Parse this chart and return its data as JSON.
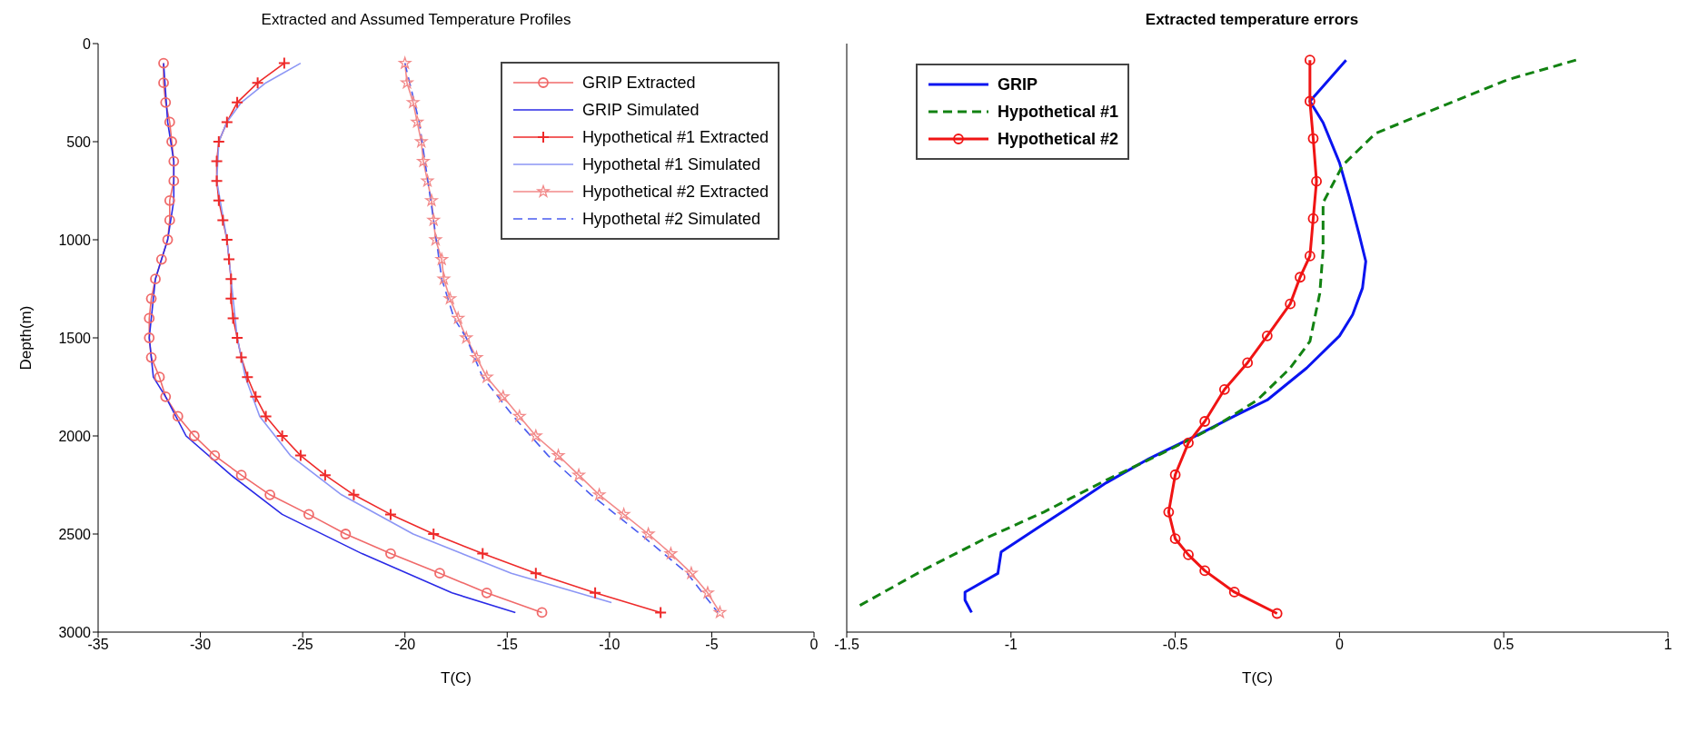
{
  "chart_data": [
    {
      "type": "line",
      "title": "Extracted and Assumed Temperature Profiles",
      "xlabel": "T(C)",
      "ylabel": "Depth(m)",
      "xlim": [
        -35,
        0
      ],
      "xticks": [
        -35,
        -30,
        -25,
        -20,
        -15,
        -10,
        -5,
        0
      ],
      "ylim": [
        3000,
        0
      ],
      "yticks": [
        0,
        500,
        1000,
        1500,
        2000,
        2500,
        3000
      ],
      "legend": "top right",
      "series": [
        {
          "name": "GRIP Extracted",
          "color": "#f06a6a",
          "marker": "circle",
          "line_style": "solid",
          "x": [
            -31.8,
            -31.8,
            -31.7,
            -31.5,
            -31.4,
            -31.3,
            -31.3,
            -31.5,
            -31.5,
            -31.6,
            -31.9,
            -32.2,
            -32.4,
            -32.5,
            -32.5,
            -32.4,
            -32.0,
            -31.7,
            -31.1,
            -30.3,
            -29.3,
            -28.0,
            -26.6,
            -24.7,
            -22.9,
            -20.7,
            -18.3,
            -16.0,
            -13.3
          ],
          "values": [
            100,
            200,
            300,
            400,
            500,
            600,
            700,
            800,
            900,
            1000,
            1100,
            1200,
            1300,
            1400,
            1500,
            1600,
            1700,
            1800,
            1900,
            2000,
            2100,
            2200,
            2300,
            2400,
            2500,
            2600,
            2700,
            2800,
            2900
          ]
        },
        {
          "name": "GRIP Simulated",
          "color": "#2a2ae6",
          "marker": "none",
          "line_style": "solid",
          "x": [
            -31.8,
            -31.6,
            -31.3,
            -31.3,
            -31.6,
            -32.2,
            -32.5,
            -32.3,
            -31.7,
            -30.7,
            -28.5,
            -26.0,
            -22.1,
            -17.7,
            -14.6
          ],
          "values": [
            100,
            400,
            600,
            800,
            1000,
            1200,
            1500,
            1700,
            1800,
            2000,
            2200,
            2400,
            2600,
            2800,
            2900
          ]
        },
        {
          "name": "Hypothetical #1 Extracted",
          "color": "#ee2a2a",
          "marker": "cross",
          "line_style": "solid",
          "x": [
            -25.9,
            -27.2,
            -28.2,
            -28.7,
            -29.1,
            -29.2,
            -29.2,
            -29.1,
            -28.9,
            -28.7,
            -28.6,
            -28.5,
            -28.5,
            -28.4,
            -28.2,
            -28.0,
            -27.7,
            -27.3,
            -26.8,
            -26.0,
            -25.1,
            -23.9,
            -22.5,
            -20.7,
            -18.6,
            -16.2,
            -13.6,
            -10.7,
            -7.5
          ],
          "values": [
            100,
            200,
            300,
            400,
            500,
            600,
            700,
            800,
            900,
            1000,
            1100,
            1200,
            1300,
            1400,
            1500,
            1600,
            1700,
            1800,
            1900,
            2000,
            2100,
            2200,
            2300,
            2400,
            2500,
            2600,
            2700,
            2800,
            2900
          ]
        },
        {
          "name": "Hypothetal #1 Simulated",
          "color": "#8c96f5",
          "marker": "none",
          "line_style": "solid",
          "x": [
            -25.1,
            -26.8,
            -28.0,
            -28.7,
            -29.1,
            -29.2,
            -28.7,
            -28.2,
            -27.8,
            -27.1,
            -25.6,
            -23.1,
            -19.6,
            -14.8,
            -9.9
          ],
          "values": [
            100,
            200,
            300,
            400,
            500,
            700,
            1000,
            1500,
            1700,
            1900,
            2100,
            2300,
            2500,
            2700,
            2850
          ]
        },
        {
          "name": "Hypothetical #2 Extracted",
          "color": "#f28a8a",
          "marker": "star",
          "line_style": "solid",
          "x": [
            -20.0,
            -19.9,
            -19.6,
            -19.4,
            -19.2,
            -19.1,
            -18.9,
            -18.7,
            -18.6,
            -18.5,
            -18.2,
            -18.1,
            -17.8,
            -17.4,
            -17.0,
            -16.5,
            -16.0,
            -15.2,
            -14.4,
            -13.6,
            -12.5,
            -11.5,
            -10.5,
            -9.3,
            -8.1,
            -7.0,
            -6.0,
            -5.2,
            -4.6
          ],
          "values": [
            100,
            200,
            300,
            400,
            500,
            600,
            700,
            800,
            900,
            1000,
            1100,
            1200,
            1300,
            1400,
            1500,
            1600,
            1700,
            1800,
            1900,
            2000,
            2100,
            2200,
            2300,
            2400,
            2500,
            2600,
            2700,
            2800,
            2900
          ]
        },
        {
          "name": "Hypothetal #2 Simulated",
          "color": "#4a5cf0",
          "marker": "none",
          "line_style": "dashed",
          "x": [
            -20.0,
            -19.3,
            -18.6,
            -18.2,
            -17.6,
            -17.0,
            -16.2,
            -14.7,
            -13.0,
            -10.9,
            -8.5,
            -6.2,
            -4.7
          ],
          "values": [
            100,
            400,
            900,
            1200,
            1400,
            1500,
            1700,
            1900,
            2100,
            2300,
            2500,
            2700,
            2900
          ]
        }
      ]
    },
    {
      "type": "line",
      "title": "Extracted temperature errors",
      "xlabel": "T(C)",
      "xlim": [
        -1.5,
        1
      ],
      "xticks": [
        -1.5,
        -1,
        -0.5,
        0,
        0.5,
        1
      ],
      "ylim": [
        3000,
        0
      ],
      "yticks": [
        0,
        500,
        1000,
        1500,
        2000,
        2500,
        3000
      ],
      "tick_labels": "x",
      "legend": "top left",
      "series": [
        {
          "name": "GRIP",
          "color": "#0a14f0",
          "marker": "none",
          "line_style": "solid",
          "x": [
            0.02,
            -0.09,
            -0.05,
            0.0,
            0.03,
            0.06,
            0.08,
            0.07,
            0.04,
            0.0,
            -0.1,
            -0.22,
            -0.32,
            -0.43,
            -0.58,
            -0.71,
            -0.82,
            -0.92,
            -1.03,
            -1.04,
            -1.14,
            -1.14,
            -1.12
          ],
          "values": [
            84,
            294,
            403,
            607,
            783,
            974,
            1110,
            1246,
            1382,
            1490,
            1654,
            1817,
            1899,
            1994,
            2116,
            2239,
            2361,
            2470,
            2592,
            2701,
            2796,
            2837,
            2900
          ]
        },
        {
          "name": "Hypothetical #1",
          "color": "#128212",
          "marker": "none",
          "line_style": "dashed",
          "x": [
            0.72,
            0.51,
            0.27,
            0.11,
            0.01,
            -0.05,
            -0.05,
            -0.06,
            -0.09,
            -0.15,
            -0.25,
            -0.38,
            -0.54,
            -0.71,
            -0.9,
            -1.08,
            -1.27,
            -1.46
          ],
          "values": [
            84,
            185,
            348,
            457,
            620,
            811,
            1055,
            1273,
            1518,
            1654,
            1817,
            1953,
            2089,
            2225,
            2388,
            2524,
            2687,
            2864
          ]
        },
        {
          "name": "Hypothetical #2",
          "color": "#f01414",
          "marker": "circle",
          "line_style": "solid",
          "x": [
            -0.09,
            -0.09,
            -0.08,
            -0.07,
            -0.08,
            -0.09,
            -0.12,
            -0.15,
            -0.22,
            -0.28,
            -0.35,
            -0.41,
            -0.46,
            -0.5,
            -0.52,
            -0.5,
            -0.46,
            -0.41,
            -0.32,
            -0.19
          ],
          "values": [
            84,
            294,
            484,
            702,
            892,
            1083,
            1191,
            1327,
            1490,
            1627,
            1763,
            1926,
            2035,
            2198,
            2388,
            2524,
            2606,
            2687,
            2796,
            2905
          ]
        }
      ]
    }
  ]
}
